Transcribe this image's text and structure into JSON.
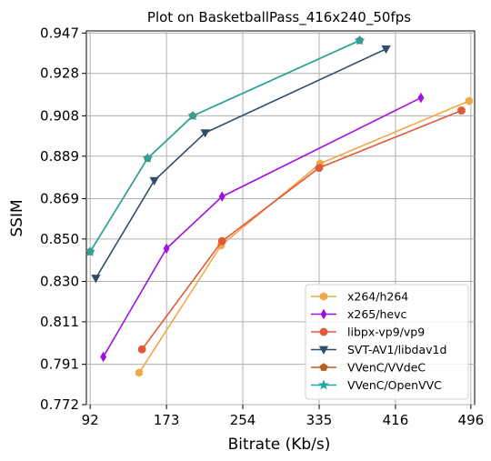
{
  "chart_data": {
    "type": "line",
    "title": "Plot on BasketballPass_416x240_50fps",
    "xlabel": "Bitrate (Kb/s)",
    "ylabel": "SSIM",
    "xlim": [
      88,
      500
    ],
    "ylim": [
      0.772,
      0.948
    ],
    "xticks": [
      92,
      173,
      254,
      335,
      416,
      496
    ],
    "xtick_labels": [
      "92",
      "173",
      "254",
      "335",
      "416",
      "496"
    ],
    "yticks": [
      0.772,
      0.791,
      0.811,
      0.83,
      0.85,
      0.869,
      0.889,
      0.908,
      0.928,
      0.947
    ],
    "ytick_labels": [
      "0.772",
      "0.791",
      "0.811",
      "0.830",
      "0.850",
      "0.869",
      "0.889",
      "0.908",
      "0.928",
      "0.947"
    ],
    "grid": true,
    "legend_position": "lower-right",
    "series": [
      {
        "name": "x264/h264",
        "color": "#f0a848",
        "marker": "hexagon",
        "x": [
          144,
          231,
          336,
          494
        ],
        "y": [
          0.787,
          0.847,
          0.8855,
          0.915
        ]
      },
      {
        "name": "x265/hevc",
        "color": "#a010e0",
        "marker": "diamond",
        "x": [
          106,
          173,
          232,
          443
        ],
        "y": [
          0.7945,
          0.8455,
          0.87,
          0.9165
        ]
      },
      {
        "name": "libpx-vp9/vp9",
        "color": "#e05a3a",
        "marker": "octagon",
        "x": [
          147,
          232,
          335,
          486
        ],
        "y": [
          0.798,
          0.849,
          0.8835,
          0.9105
        ]
      },
      {
        "name": "SVT-AV1/libdav1d",
        "color": "#2e4e6e",
        "marker": "triangle-down",
        "x": [
          98,
          160,
          214,
          406
        ],
        "y": [
          0.8315,
          0.8775,
          0.9,
          0.9395
        ]
      },
      {
        "name": "VVenC/VVdeC",
        "color": "#b86020",
        "marker": "pentagon",
        "x": [
          92,
          153,
          201,
          378
        ],
        "y": [
          0.844,
          0.888,
          0.908,
          0.9435
        ]
      },
      {
        "name": "VVenC/OpenVVC",
        "color": "#20a8a0",
        "marker": "star",
        "x": [
          92,
          153,
          201,
          378
        ],
        "y": [
          0.844,
          0.888,
          0.908,
          0.9435
        ]
      }
    ]
  }
}
